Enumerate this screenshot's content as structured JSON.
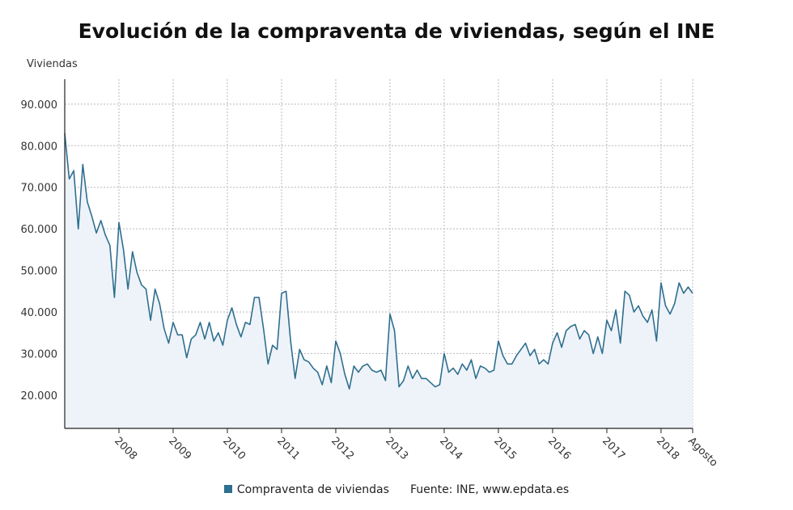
{
  "chart_data": {
    "type": "area",
    "title": "Evolución de la compraventa de viviendas, según el INE",
    "ylabel": "Viviendas",
    "xlabel": "",
    "ylim": [
      12000,
      96000
    ],
    "y_ticks": [
      20000,
      30000,
      40000,
      50000,
      60000,
      70000,
      80000,
      90000
    ],
    "y_tick_labels": [
      "20.000",
      "30.000",
      "40.000",
      "50.000",
      "60.000",
      "70.000",
      "80.000",
      "90.000"
    ],
    "x_start": "2007-01",
    "x_end": "2018-08",
    "x_tick_labels": [
      {
        "label": "2008",
        "month": "2008-01"
      },
      {
        "label": "2009",
        "month": "2009-01"
      },
      {
        "label": "2010",
        "month": "2010-01"
      },
      {
        "label": "2011",
        "month": "2011-01"
      },
      {
        "label": "2012",
        "month": "2012-01"
      },
      {
        "label": "2013",
        "month": "2013-01"
      },
      {
        "label": "2014",
        "month": "2014-01"
      },
      {
        "label": "2015",
        "month": "2015-01"
      },
      {
        "label": "2016",
        "month": "2016-01"
      },
      {
        "label": "2017",
        "month": "2017-01"
      },
      {
        "label": "2018",
        "month": "2018-01"
      },
      {
        "label": "Agosto",
        "month": "2018-08"
      }
    ],
    "grid": true,
    "legend_position": "bottom",
    "series": [
      {
        "name": "Compraventa de viviendas",
        "color": "#2f6f8f",
        "fill": "#eef3f9",
        "values": [
          83000,
          72000,
          74000,
          60000,
          75500,
          66500,
          63000,
          59000,
          62000,
          58500,
          56000,
          43500,
          61500,
          55000,
          45500,
          54500,
          49500,
          46500,
          45500,
          38000,
          45500,
          42000,
          36000,
          32500,
          37500,
          34500,
          34500,
          29000,
          33500,
          34500,
          37500,
          33500,
          37500,
          33000,
          35000,
          32000,
          38000,
          41000,
          37000,
          34000,
          37500,
          37000,
          43500,
          43500,
          36000,
          27500,
          32000,
          31000,
          44500,
          45000,
          33000,
          24000,
          31000,
          28500,
          28000,
          26500,
          25500,
          22500,
          27000,
          23000,
          33000,
          30000,
          25000,
          21500,
          27000,
          25500,
          27000,
          27500,
          26000,
          25500,
          26000,
          23500,
          39500,
          35500,
          22000,
          23500,
          27000,
          24000,
          26000,
          24000,
          24000,
          23000,
          22000,
          22500,
          30000,
          25500,
          26500,
          25000,
          27500,
          26000,
          28500,
          24000,
          27000,
          26500,
          25500,
          26000,
          33000,
          29500,
          27500,
          27500,
          29500,
          31000,
          32500,
          29500,
          31000,
          27500,
          28500,
          27500,
          32500,
          35000,
          31500,
          35500,
          36500,
          37000,
          33500,
          35500,
          34500,
          30000,
          34000,
          30000,
          38000,
          35500,
          40500,
          32500,
          45000,
          44000,
          40000,
          41500,
          39000,
          37500,
          40500,
          33000,
          47000,
          41500,
          39500,
          42000,
          47000,
          44500,
          46000,
          44500
        ]
      }
    ],
    "source": "Fuente: INE, www.epdata.es"
  }
}
